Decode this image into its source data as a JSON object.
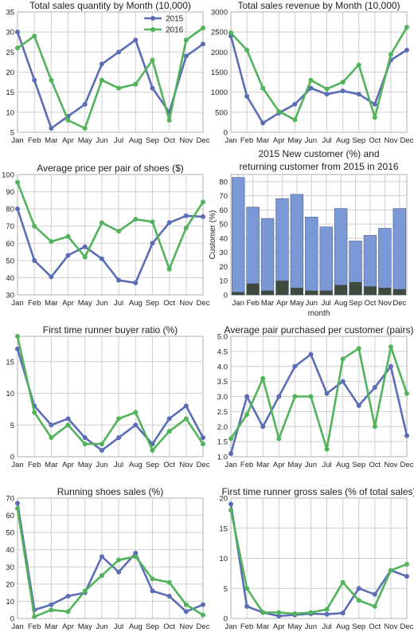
{
  "colors": {
    "s2015": "#5b6db5",
    "s2016": "#52b35c",
    "bar_total": "#7a98d6",
    "bar_return": "#3f4a3f",
    "grid": "#cfcfcf",
    "frame": "#b0b0b0"
  },
  "months": [
    "Jan",
    "Feb",
    "Mar",
    "Apr",
    "May",
    "Jun",
    "Jul",
    "Aug",
    "Sep",
    "Oct",
    "Nov",
    "Dec"
  ],
  "legend": [
    "2015",
    "2016"
  ],
  "chart_data": [
    {
      "type": "line",
      "title": "Total sales quantity by Month (10,000)",
      "ylim": [
        5,
        35
      ],
      "yticks": [
        5,
        10,
        15,
        20,
        25,
        30,
        35
      ],
      "legend_position": "top-right",
      "series": [
        {
          "name": "2015",
          "values": [
            30,
            18,
            6,
            9,
            12,
            22,
            25,
            28,
            16,
            10,
            24,
            27
          ]
        },
        {
          "name": "2016",
          "values": [
            26,
            29,
            18,
            8,
            6,
            18,
            16,
            17,
            23,
            8,
            28,
            31
          ]
        }
      ]
    },
    {
      "type": "line",
      "title": "Total sales revenue by Month (10,000)",
      "ylim": [
        0,
        3000
      ],
      "yticks": [
        0,
        500,
        1000,
        1500,
        2000,
        2500,
        3000
      ],
      "series": [
        {
          "name": "2015",
          "values": [
            2400,
            900,
            230,
            480,
            700,
            1100,
            950,
            1030,
            950,
            700,
            1800,
            2050
          ]
        },
        {
          "name": "2016",
          "values": [
            2480,
            2050,
            1100,
            520,
            310,
            1300,
            1080,
            1250,
            1680,
            370,
            1940,
            2620
          ]
        }
      ]
    },
    {
      "type": "line",
      "title": "Average price per pair of shoes ($)",
      "ylim": [
        30,
        100
      ],
      "yticks": [
        30,
        40,
        50,
        60,
        70,
        80,
        90,
        100
      ],
      "series": [
        {
          "name": "2015",
          "values": [
            80,
            50,
            40.5,
            53,
            58,
            51,
            38.5,
            37,
            60,
            72,
            76,
            75.5
          ]
        },
        {
          "name": "2016",
          "values": [
            95.5,
            70,
            61,
            64,
            52,
            72,
            67,
            74,
            72.5,
            45,
            69,
            84
          ]
        }
      ]
    },
    {
      "type": "bar",
      "title": "2015 New customer (%) and returning customer from 2015 in 2016",
      "xlabel": "month",
      "ylabel": "Customer (%)",
      "ylim": [
        0,
        85
      ],
      "yticks": [
        0,
        10,
        20,
        30,
        40,
        50,
        60,
        70,
        80
      ],
      "series": [
        {
          "name": "",
          "values": [
            83,
            62,
            54,
            68,
            71,
            55,
            48,
            61,
            38,
            42,
            47,
            61
          ]
        },
        {
          "name": "",
          "values": [
            2,
            8,
            3,
            10,
            5,
            3,
            3,
            7,
            9,
            6,
            5,
            4
          ]
        }
      ]
    },
    {
      "type": "line",
      "title": "First time runner buyer ratio (%)",
      "ylim": [
        0,
        19
      ],
      "yticks": [
        0,
        5,
        10,
        15
      ],
      "series": [
        {
          "name": "2015",
          "values": [
            17,
            8,
            5,
            6,
            3,
            1,
            3,
            5,
            2,
            6,
            8,
            3
          ]
        },
        {
          "name": "2016",
          "values": [
            19,
            7,
            3,
            5,
            2,
            2,
            6,
            7,
            1,
            4,
            6,
            2
          ]
        }
      ]
    },
    {
      "type": "line",
      "title": "Average pair purchased per customer (pairs)",
      "ylim": [
        1.0,
        5.0
      ],
      "yticks": [
        1.0,
        1.5,
        2.0,
        2.5,
        3.0,
        3.5,
        4.0,
        4.5,
        5.0
      ],
      "series": [
        {
          "name": "2015",
          "values": [
            1.1,
            3.0,
            2.0,
            3.0,
            4.0,
            4.4,
            3.1,
            3.5,
            2.7,
            3.3,
            4.0,
            1.7
          ]
        },
        {
          "name": "2016",
          "values": [
            1.6,
            2.4,
            3.6,
            1.6,
            3.0,
            3.0,
            1.25,
            4.25,
            4.6,
            2.0,
            4.65,
            3.1
          ]
        }
      ]
    },
    {
      "type": "line",
      "title": "Running shoes sales (%)",
      "ylim": [
        0,
        70
      ],
      "yticks": [
        0,
        10,
        20,
        30,
        40,
        50,
        60,
        70
      ],
      "series": [
        {
          "name": "2015",
          "values": [
            67,
            5,
            8,
            13,
            15,
            36,
            27,
            38,
            16,
            13,
            4,
            8
          ]
        },
        {
          "name": "2016",
          "values": [
            64,
            1,
            5,
            4,
            16,
            25,
            34,
            36,
            23,
            21,
            8,
            2
          ]
        }
      ]
    },
    {
      "type": "line",
      "title": "First time runner gross sales (% of total sales)",
      "ylim": [
        0,
        20
      ],
      "yticks": [
        0,
        5,
        10,
        15,
        20
      ],
      "series": [
        {
          "name": "2015",
          "values": [
            19,
            2,
            1,
            0.4,
            0.6,
            0.8,
            0.7,
            0.9,
            5,
            4,
            8,
            7
          ]
        },
        {
          "name": "2016",
          "values": [
            18,
            5,
            1,
            1,
            0.8,
            1,
            1.5,
            6,
            3,
            2,
            8,
            9
          ]
        }
      ]
    }
  ]
}
